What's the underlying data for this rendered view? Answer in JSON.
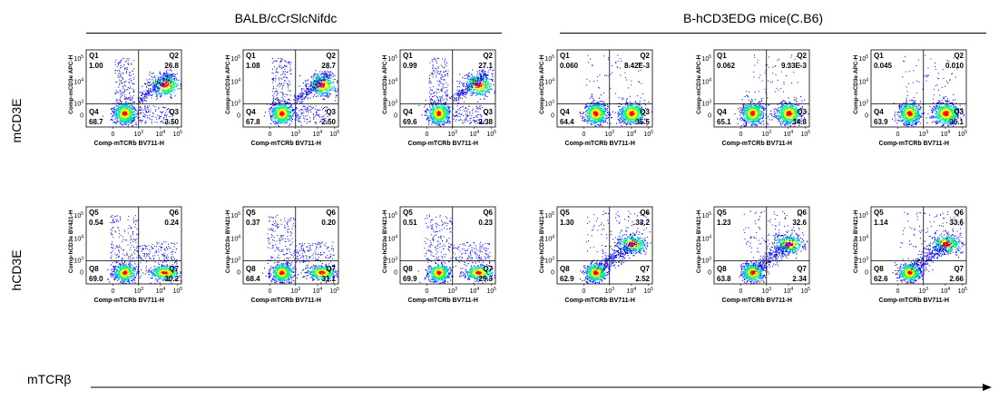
{
  "groups": [
    {
      "title": "BALB/cCrSlcNifdc"
    },
    {
      "title": "B-hCD3EDG mice(C.B6)"
    }
  ],
  "row_labels": {
    "top": "mCD3E",
    "bottom": "hCD3E"
  },
  "x_direction_label": "mTCRβ",
  "colors": {
    "density_low": "#0000ff",
    "density_mid": "#00ff66",
    "density_high": "#ff0000",
    "gate": "#000000"
  },
  "chart_data": [
    {
      "type": "scatter",
      "panel": "top-1",
      "xlabel": "Comp-mTCRb BV711-H",
      "ylabel": "Comp-mCD3e APC-H",
      "quadrants": [
        {
          "name": "Q1",
          "value": "1.00"
        },
        {
          "name": "Q2",
          "value": "26.8"
        },
        {
          "name": "Q3",
          "value": "3.50"
        },
        {
          "name": "Q4",
          "value": "68.7"
        }
      ],
      "xticks": [
        "0",
        "10^3",
        "10^4",
        "10^5"
      ],
      "yticks": [
        "0",
        "10^3",
        "10^4",
        "10^5"
      ]
    },
    {
      "type": "scatter",
      "panel": "top-2",
      "xlabel": "Comp-mTCRb BV711-H",
      "ylabel": "Comp-mCD3e APC-H",
      "quadrants": [
        {
          "name": "Q1",
          "value": "1.08"
        },
        {
          "name": "Q2",
          "value": "28.7"
        },
        {
          "name": "Q3",
          "value": "2.50"
        },
        {
          "name": "Q4",
          "value": "67.8"
        }
      ],
      "xticks": [
        "0",
        "10^3",
        "10^4",
        "10^5"
      ],
      "yticks": [
        "0",
        "10^3",
        "10^4",
        "10^5"
      ]
    },
    {
      "type": "scatter",
      "panel": "top-3",
      "xlabel": "Comp-mTCRb BV711-H",
      "ylabel": "Comp-mCD3e APC-H",
      "quadrants": [
        {
          "name": "Q1",
          "value": "0.99"
        },
        {
          "name": "Q2",
          "value": "27.1"
        },
        {
          "name": "Q3",
          "value": "2.38"
        },
        {
          "name": "Q4",
          "value": "69.6"
        }
      ],
      "xticks": [
        "0",
        "10^3",
        "10^4",
        "10^5"
      ],
      "yticks": [
        "0",
        "10^3",
        "10^4",
        "10^5"
      ]
    },
    {
      "type": "scatter",
      "panel": "top-4",
      "xlabel": "Comp-mTCRb BV711-H",
      "ylabel": "Comp-mCD3e APC-H",
      "quadrants": [
        {
          "name": "Q1",
          "value": "0.060"
        },
        {
          "name": "Q2",
          "value": "8.42E-3"
        },
        {
          "name": "Q3",
          "value": "35.5"
        },
        {
          "name": "Q4",
          "value": "64.4"
        }
      ],
      "xticks": [
        "0",
        "10^3",
        "10^4",
        "10^5"
      ],
      "yticks": [
        "0",
        "10^3",
        "10^4",
        "10^5"
      ]
    },
    {
      "type": "scatter",
      "panel": "top-5",
      "xlabel": "Comp-mTCRb BV711-H",
      "ylabel": "Comp-mCD3e APC-H",
      "quadrants": [
        {
          "name": "Q1",
          "value": "0.062"
        },
        {
          "name": "Q2",
          "value": "9.33E-3"
        },
        {
          "name": "Q3",
          "value": "34.8"
        },
        {
          "name": "Q4",
          "value": "65.1"
        }
      ],
      "xticks": [
        "0",
        "10^3",
        "10^4",
        "10^5"
      ],
      "yticks": [
        "0",
        "10^3",
        "10^4",
        "10^5"
      ]
    },
    {
      "type": "scatter",
      "panel": "top-6",
      "xlabel": "Comp-mTCRb BV711-H",
      "ylabel": "Comp-mCD3e APC-H",
      "quadrants": [
        {
          "name": "Q1",
          "value": "0.045"
        },
        {
          "name": "Q2",
          "value": "0.010"
        },
        {
          "name": "Q3",
          "value": "36.1"
        },
        {
          "name": "Q4",
          "value": "63.9"
        }
      ],
      "xticks": [
        "0",
        "10^3",
        "10^4",
        "10^5"
      ],
      "yticks": [
        "0",
        "10^3",
        "10^4",
        "10^5"
      ]
    },
    {
      "type": "scatter",
      "panel": "bottom-1",
      "xlabel": "Comp-mTCRb BV711-H",
      "ylabel": "Comp-hCD3e BV421-H",
      "quadrants": [
        {
          "name": "Q5",
          "value": "0.54"
        },
        {
          "name": "Q6",
          "value": "0.24"
        },
        {
          "name": "Q7",
          "value": "30.2"
        },
        {
          "name": "Q8",
          "value": "69.0"
        }
      ],
      "xticks": [
        "0",
        "10^3",
        "10^4",
        "10^5"
      ],
      "yticks": [
        "0",
        "10^3",
        "10^4",
        "10^5"
      ]
    },
    {
      "type": "scatter",
      "panel": "bottom-2",
      "xlabel": "Comp-mTCRb BV711-H",
      "ylabel": "Comp-hCD3e BV421-H",
      "quadrants": [
        {
          "name": "Q5",
          "value": "0.37"
        },
        {
          "name": "Q6",
          "value": "0.20"
        },
        {
          "name": "Q7",
          "value": "31.1"
        },
        {
          "name": "Q8",
          "value": "68.4"
        }
      ],
      "xticks": [
        "0",
        "10^3",
        "10^4",
        "10^5"
      ],
      "yticks": [
        "0",
        "10^3",
        "10^4",
        "10^5"
      ]
    },
    {
      "type": "scatter",
      "panel": "bottom-3",
      "xlabel": "Comp-mTCRb BV711-H",
      "ylabel": "Comp-hCD3e BV421-H",
      "quadrants": [
        {
          "name": "Q5",
          "value": "0.51"
        },
        {
          "name": "Q6",
          "value": "0.23"
        },
        {
          "name": "Q7",
          "value": "29.3"
        },
        {
          "name": "Q8",
          "value": "69.9"
        }
      ],
      "xticks": [
        "0",
        "10^3",
        "10^4",
        "10^5"
      ],
      "yticks": [
        "0",
        "10^3",
        "10^4",
        "10^5"
      ]
    },
    {
      "type": "scatter",
      "panel": "bottom-4",
      "xlabel": "Comp-mTCRb BV711-H",
      "ylabel": "Comp-hCD3e BV421-H",
      "quadrants": [
        {
          "name": "Q5",
          "value": "1.30"
        },
        {
          "name": "Q6",
          "value": "33.2"
        },
        {
          "name": "Q7",
          "value": "2.52"
        },
        {
          "name": "Q8",
          "value": "62.9"
        }
      ],
      "xticks": [
        "0",
        "10^3",
        "10^4",
        "10^5"
      ],
      "yticks": [
        "0",
        "10^3",
        "10^4",
        "10^5"
      ]
    },
    {
      "type": "scatter",
      "panel": "bottom-5",
      "xlabel": "Comp-mTCRb BV711-H",
      "ylabel": "Comp-hCD3e BV421-H",
      "quadrants": [
        {
          "name": "Q5",
          "value": "1.23"
        },
        {
          "name": "Q6",
          "value": "32.6"
        },
        {
          "name": "Q7",
          "value": "2.34"
        },
        {
          "name": "Q8",
          "value": "63.8"
        }
      ],
      "xticks": [
        "0",
        "10^3",
        "10^4",
        "10^5"
      ],
      "yticks": [
        "0",
        "10^3",
        "10^4",
        "10^5"
      ]
    },
    {
      "type": "scatter",
      "panel": "bottom-6",
      "xlabel": "Comp-mTCRb BV711-H",
      "ylabel": "Comp-hCD3e BV421-H",
      "quadrants": [
        {
          "name": "Q5",
          "value": "1.14"
        },
        {
          "name": "Q6",
          "value": "33.6"
        },
        {
          "name": "Q7",
          "value": "2.66"
        },
        {
          "name": "Q8",
          "value": "62.6"
        }
      ],
      "xticks": [
        "0",
        "10^3",
        "10^4",
        "10^5"
      ],
      "yticks": [
        "0",
        "10^3",
        "10^4",
        "10^5"
      ]
    }
  ]
}
